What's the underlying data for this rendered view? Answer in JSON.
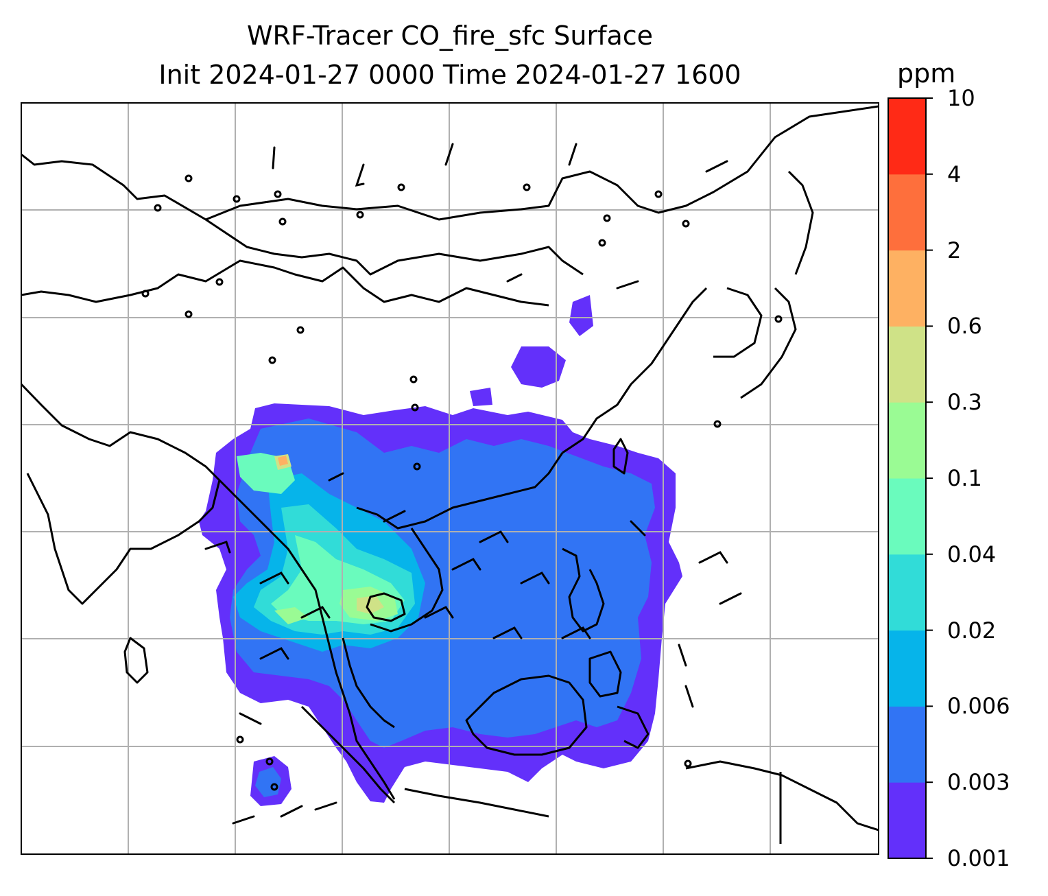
{
  "title": {
    "line1": "WRF-Tracer CO_fire_sfc Surface",
    "line2": "Init 2024-01-27 0000 Time 2024-01-27 1600"
  },
  "colorbar": {
    "units": "ppm",
    "tick_labels": [
      "0.001",
      "0.003",
      "0.006",
      "0.02",
      "0.04",
      "0.1",
      "0.3",
      "0.6",
      "2",
      "4",
      "10"
    ],
    "colors": [
      "#6330fa",
      "#3174f4",
      "#06b4ea",
      "#31dcd8",
      "#6afbbd",
      "#9afb94",
      "#cfe287",
      "#feb162",
      "#fe6f3c",
      "#ff2a16"
    ]
  },
  "map": {
    "fill_color_none": "#ffffff",
    "gridline_color": "#b0b0b0",
    "coastline_color": "#000000",
    "wind_barb_color": "#000000"
  }
}
